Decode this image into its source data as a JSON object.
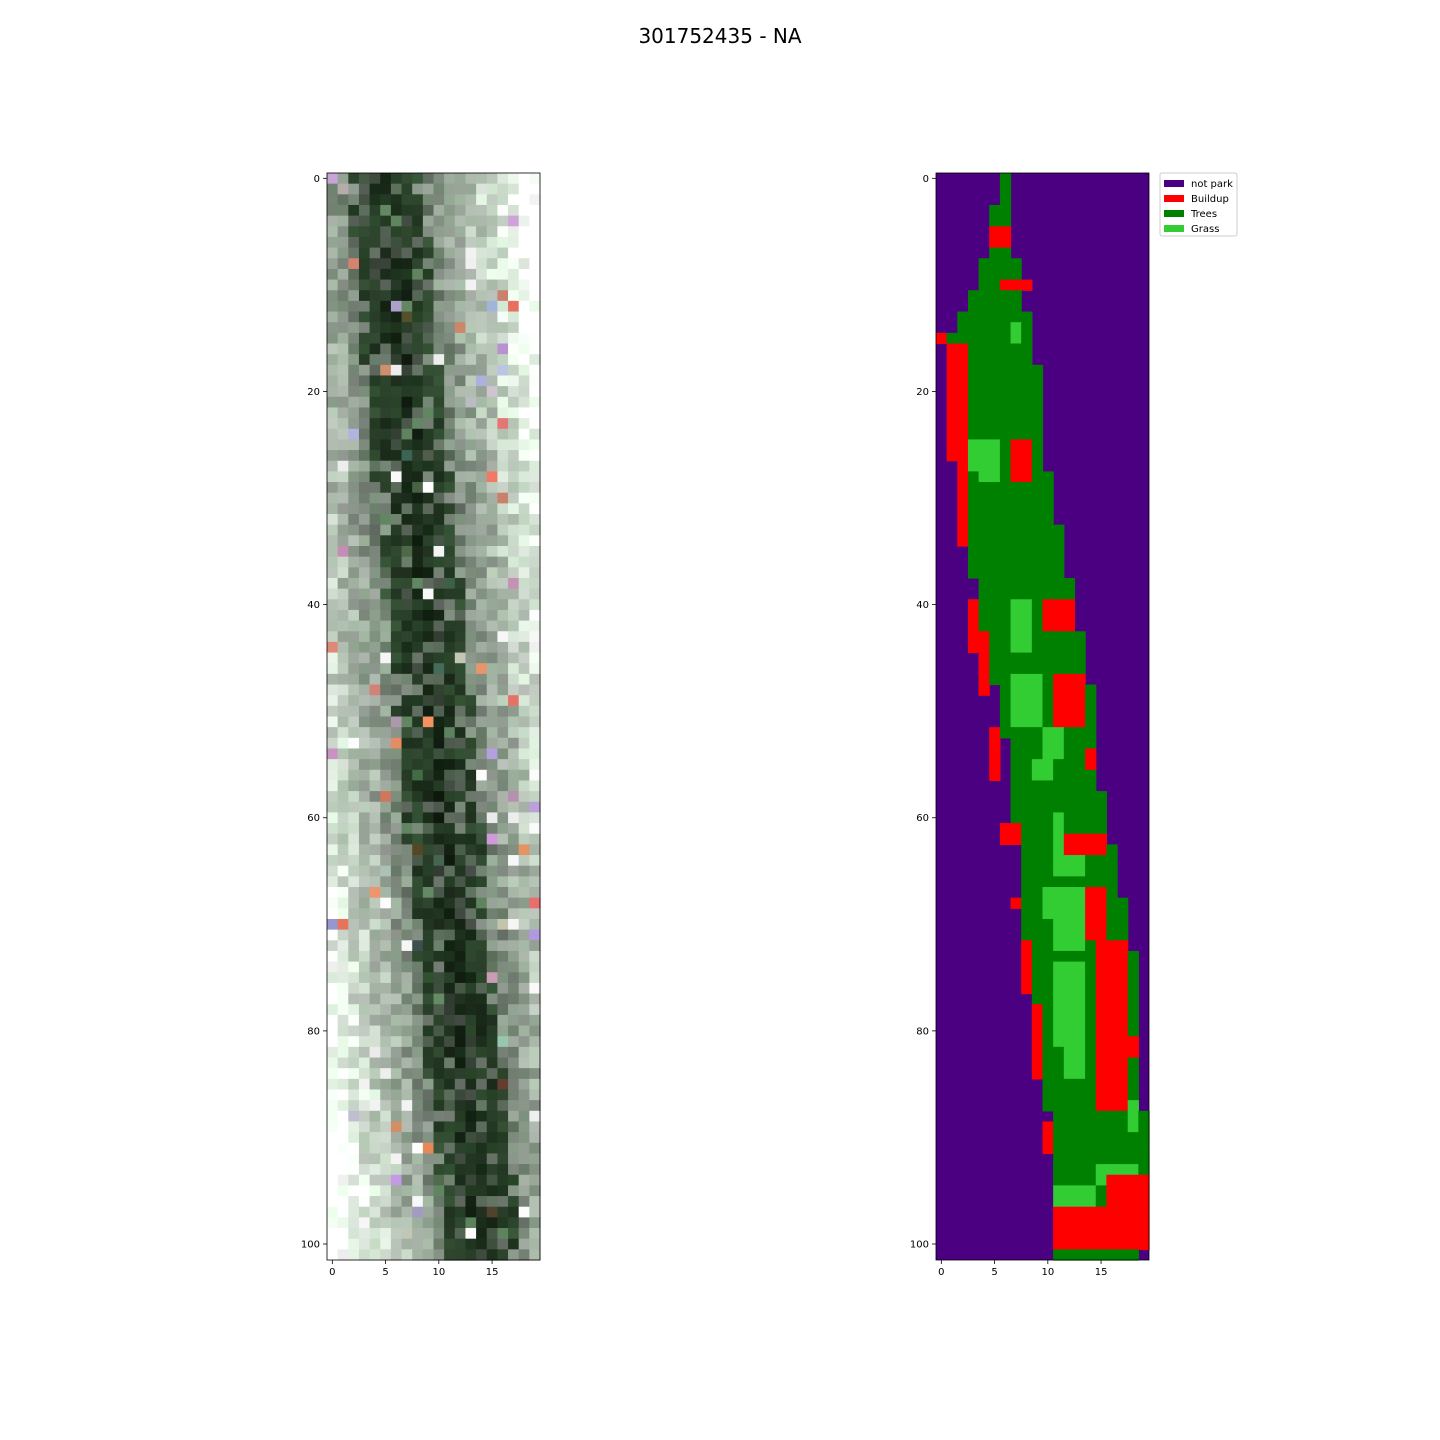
{
  "title": "301752435 - NA",
  "chart_data": [
    {
      "type": "heatmap",
      "panel": "satellite-image",
      "rows": 102,
      "cols": 20,
      "xlim": [
        -0.5,
        19.5
      ],
      "ylim": [
        101.5,
        -0.5
      ],
      "xticks": [
        0,
        5,
        10,
        15
      ],
      "yticks": [
        0,
        20,
        40,
        60,
        80,
        100
      ]
    },
    {
      "type": "heatmap",
      "panel": "classification-mask",
      "rows": 102,
      "cols": 20,
      "xlim": [
        -0.5,
        19.5
      ],
      "ylim": [
        101.5,
        -0.5
      ],
      "xticks": [
        0,
        5,
        10,
        15
      ],
      "yticks": [
        0,
        20,
        40,
        60,
        80,
        100
      ],
      "legend_position": "upper-right, outside",
      "classes": [
        {
          "name": "not park",
          "color": "#4b0082"
        },
        {
          "name": "Buildup",
          "color": "#ff0000"
        },
        {
          "name": "Trees",
          "color": "#008000"
        },
        {
          "name": "Grass",
          "color": "#32cd32"
        }
      ],
      "park_strip_by_row": [
        [
          0,
          6,
          7
        ],
        [
          5,
          5,
          7
        ],
        [
          10,
          4,
          8
        ],
        [
          15,
          1,
          9
        ],
        [
          20,
          2,
          10
        ],
        [
          25,
          2,
          10
        ],
        [
          30,
          3,
          11
        ],
        [
          35,
          3,
          12
        ],
        [
          40,
          4,
          13
        ],
        [
          45,
          5,
          14
        ],
        [
          50,
          6,
          15
        ],
        [
          55,
          7,
          15
        ],
        [
          60,
          7,
          16
        ],
        [
          65,
          8,
          17
        ],
        [
          70,
          8,
          18
        ],
        [
          75,
          9,
          19
        ],
        [
          80,
          9,
          19
        ],
        [
          85,
          10,
          19
        ],
        [
          90,
          11,
          20
        ],
        [
          95,
          11,
          20
        ],
        [
          101,
          11,
          19
        ]
      ],
      "buildup_patches": [
        [
          5,
          7,
          5,
          7
        ],
        [
          10,
          11,
          6,
          9
        ],
        [
          15,
          16,
          0,
          1
        ],
        [
          16,
          27,
          1,
          3
        ],
        [
          25,
          29,
          7,
          9
        ],
        [
          27,
          35,
          2,
          3
        ],
        [
          40,
          43,
          10,
          13
        ],
        [
          40,
          45,
          3,
          4
        ],
        [
          43,
          49,
          4,
          5
        ],
        [
          47,
          52,
          11,
          14
        ],
        [
          52,
          57,
          5,
          6
        ],
        [
          54,
          56,
          14,
          15
        ],
        [
          61,
          63,
          6,
          8
        ],
        [
          62,
          64,
          12,
          16
        ],
        [
          67,
          72,
          14,
          16
        ],
        [
          68,
          69,
          7,
          8
        ],
        [
          72,
          77,
          8,
          9
        ],
        [
          72,
          88,
          15,
          18
        ],
        [
          78,
          85,
          9,
          10
        ],
        [
          81,
          83,
          18,
          19
        ],
        [
          89,
          92,
          10,
          11
        ],
        [
          94,
          101,
          16,
          20
        ],
        [
          97,
          101,
          11,
          17
        ]
      ],
      "grass_patches": [
        [
          14,
          16,
          7,
          8
        ],
        [
          25,
          28,
          3,
          6
        ],
        [
          28,
          29,
          4,
          6
        ],
        [
          40,
          45,
          7,
          9
        ],
        [
          47,
          52,
          7,
          10
        ],
        [
          52,
          55,
          10,
          12
        ],
        [
          55,
          57,
          9,
          11
        ],
        [
          60,
          62,
          11,
          12
        ],
        [
          62,
          66,
          11,
          14
        ],
        [
          67,
          70,
          10,
          14
        ],
        [
          70,
          73,
          11,
          14
        ],
        [
          74,
          82,
          11,
          14
        ],
        [
          82,
          85,
          12,
          14
        ],
        [
          87,
          90,
          18,
          19
        ],
        [
          93,
          95,
          15,
          19
        ],
        [
          95,
          97,
          11,
          15
        ]
      ]
    }
  ],
  "legend": {
    "items": [
      {
        "label": "not park",
        "color": "#4b0082"
      },
      {
        "label": "Buildup",
        "color": "#ff0000"
      },
      {
        "label": "Trees",
        "color": "#008000"
      },
      {
        "label": "Grass",
        "color": "#32cd32"
      }
    ]
  }
}
